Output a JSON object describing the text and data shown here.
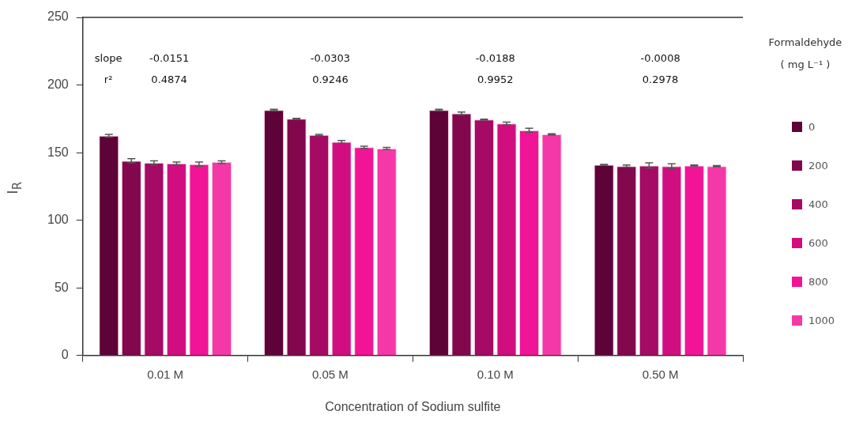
{
  "chart_data": {
    "type": "bar",
    "xlabel": "Concentration of Sodium sulfite",
    "ylabel": "I$_{R}$",
    "legend_title": "Formaldehyde\n( mg L⁻¹ )",
    "categories": [
      "0.01 M",
      "0.05 M",
      "0.10 M",
      "0.50 M"
    ],
    "series": [
      {
        "name": "0",
        "color": "#5e0338",
        "values": [
          162.5,
          181.5,
          181.5,
          141
        ],
        "errors": [
          1,
          0.5,
          0.5,
          0.3
        ]
      },
      {
        "name": "200",
        "color": "#82074c",
        "values": [
          144,
          175,
          179,
          140
        ],
        "errors": [
          1.5,
          0.3,
          1,
          0.8
        ]
      },
      {
        "name": "400",
        "color": "#a50a64",
        "values": [
          142.5,
          163,
          174.5,
          140.5
        ],
        "errors": [
          1.5,
          0.5,
          0.3,
          2
        ]
      },
      {
        "name": "600",
        "color": "#d00e80",
        "values": [
          142,
          158,
          171.5,
          140
        ],
        "errors": [
          1,
          1,
          1,
          1.8
        ]
      },
      {
        "name": "800",
        "color": "#f11497",
        "values": [
          141.5,
          154,
          166.5,
          140.5
        ],
        "errors": [
          1.5,
          0.8,
          1.5,
          0.3
        ]
      },
      {
        "name": "1000",
        "color": "#f538a8",
        "values": [
          143,
          153,
          163.5,
          140
        ],
        "errors": [
          1,
          0.8,
          0.5,
          0.5
        ]
      }
    ],
    "ylim": [
      0,
      250
    ],
    "yticks": [
      0,
      50,
      100,
      150,
      200,
      250
    ],
    "grid": false,
    "legend": "right",
    "annotations": [
      "slope",
      "r²",
      "-0.0151",
      "0.4874",
      "-0.0303",
      "0.9246",
      "-0.0188",
      "0.9952",
      "-0.0008",
      "0.2978"
    ]
  }
}
